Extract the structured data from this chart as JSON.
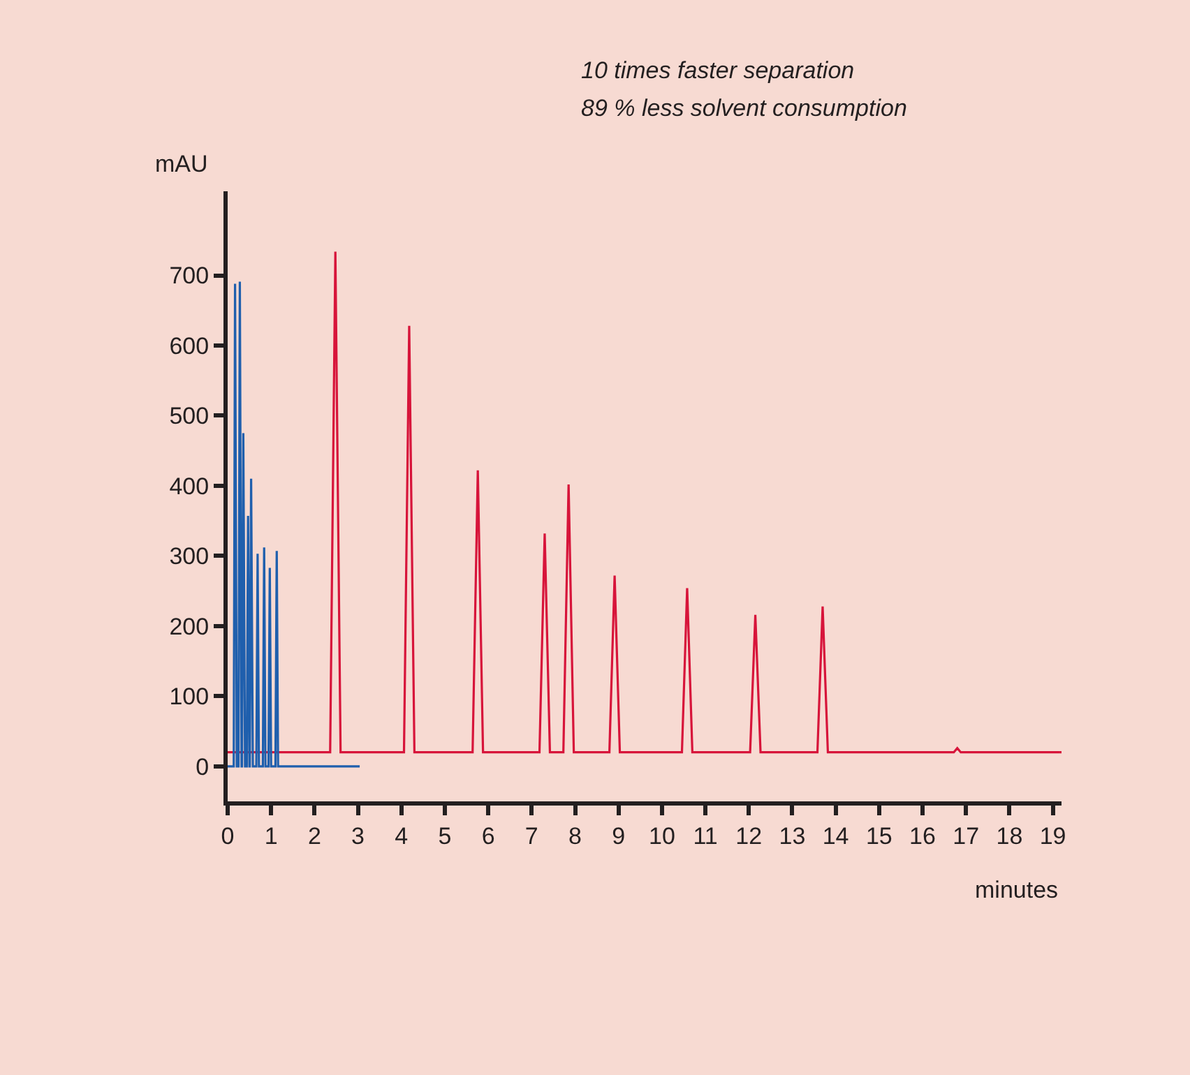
{
  "chart_data": {
    "type": "line",
    "xlabel": "minutes",
    "ylabel": "mAU",
    "annotations": [
      "10 times faster separation",
      "89 % less solvent consumption"
    ],
    "xlim": [
      0,
      19.2
    ],
    "xticks": [
      0,
      1,
      2,
      3,
      4,
      5,
      6,
      7,
      8,
      9,
      10,
      11,
      12,
      13,
      14,
      15,
      16,
      17,
      18,
      19
    ],
    "ylim": [
      -50,
      820
    ],
    "yticks": [
      0,
      100,
      200,
      300,
      400,
      500,
      600,
      700
    ],
    "grid": false,
    "marker": "none",
    "line_style": "solid",
    "series": [
      {
        "color": "#d7143a",
        "x": [
          0,
          2.36,
          2.48,
          2.6,
          4.06,
          4.18,
          4.3,
          5.64,
          5.76,
          5.88,
          7.18,
          7.3,
          7.42,
          7.73,
          7.85,
          7.97,
          8.79,
          8.91,
          9.03,
          10.46,
          10.58,
          10.7,
          12.03,
          12.15,
          12.27,
          13.58,
          13.7,
          13.82,
          16.72,
          16.8,
          16.88,
          19.2
        ],
        "values": [
          20,
          20,
          734,
          20,
          20,
          628,
          20,
          20,
          422,
          20,
          20,
          332,
          20,
          20,
          402,
          20,
          20,
          272,
          20,
          20,
          254,
          20,
          20,
          216,
          20,
          20,
          228,
          20,
          20,
          26,
          20,
          20
        ]
      },
      {
        "color": "#1f5fad",
        "x": [
          0,
          0.14,
          0.17,
          0.21,
          0.25,
          0.28,
          0.32,
          0.33,
          0.36,
          0.4,
          0.44,
          0.47,
          0.5,
          0.51,
          0.54,
          0.58,
          0.66,
          0.69,
          0.72,
          0.81,
          0.84,
          0.87,
          0.94,
          0.97,
          1.0,
          1.1,
          1.13,
          1.16,
          3.04
        ],
        "values": [
          0,
          0,
          688,
          0,
          0,
          691,
          0,
          0,
          475,
          0,
          0,
          357,
          0,
          0,
          410,
          0,
          0,
          303,
          0,
          0,
          312,
          0,
          0,
          283,
          0,
          0,
          307,
          0,
          0
        ]
      }
    ]
  }
}
